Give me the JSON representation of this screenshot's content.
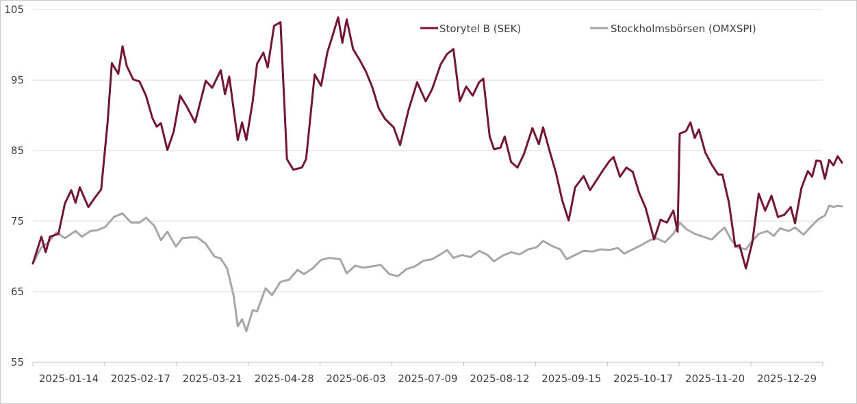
{
  "chart_data": {
    "type": "line",
    "title": "",
    "xlabel": "",
    "ylabel": "",
    "ylim": [
      55,
      105
    ],
    "yticks": [
      55,
      65,
      75,
      85,
      95,
      105
    ],
    "ytick_labels": [
      "55",
      "65",
      "75",
      "85",
      "95",
      "105"
    ],
    "x_start": "2025-01-02",
    "x_end": "2026-01-07",
    "xtick_labels": [
      "2025-01-14",
      "2025-02-17",
      "2025-03-21",
      "2025-04-28",
      "2025-06-03",
      "2025-07-09",
      "2025-08-12",
      "2025-09-15",
      "2025-10-17",
      "2025-11-20",
      "2025-12-29"
    ],
    "grid": "horizontal",
    "legend": "top-right",
    "series": [
      {
        "name": "Storytel B (SEK)",
        "color": "#7a1230",
        "points": [
          [
            "2025-01-02",
            69.0
          ],
          [
            "2025-01-06",
            72.8
          ],
          [
            "2025-01-08",
            70.6
          ],
          [
            "2025-01-10",
            72.8
          ],
          [
            "2025-01-14",
            73.2
          ],
          [
            "2025-01-17",
            77.5
          ],
          [
            "2025-01-20",
            79.4
          ],
          [
            "2025-01-22",
            77.6
          ],
          [
            "2025-01-24",
            79.8
          ],
          [
            "2025-01-28",
            77.0
          ],
          [
            "2025-01-31",
            78.3
          ],
          [
            "2025-02-03",
            79.5
          ],
          [
            "2025-02-06",
            89.0
          ],
          [
            "2025-02-08",
            97.4
          ],
          [
            "2025-02-11",
            95.9
          ],
          [
            "2025-02-13",
            99.8
          ],
          [
            "2025-02-15",
            97.0
          ],
          [
            "2025-02-18",
            95.1
          ],
          [
            "2025-02-21",
            94.8
          ],
          [
            "2025-02-24",
            92.8
          ],
          [
            "2025-02-27",
            89.6
          ],
          [
            "2025-03-01",
            88.4
          ],
          [
            "2025-03-03",
            88.9
          ],
          [
            "2025-03-06",
            85.1
          ],
          [
            "2025-03-09",
            87.7
          ],
          [
            "2025-03-12",
            92.8
          ],
          [
            "2025-03-15",
            91.3
          ],
          [
            "2025-03-19",
            89.0
          ],
          [
            "2025-03-24",
            94.9
          ],
          [
            "2025-03-27",
            93.9
          ],
          [
            "2025-03-31",
            96.4
          ],
          [
            "2025-04-02",
            93.0
          ],
          [
            "2025-04-04",
            95.5
          ],
          [
            "2025-04-08",
            86.5
          ],
          [
            "2025-04-10",
            89.0
          ],
          [
            "2025-04-12",
            86.5
          ],
          [
            "2025-04-15",
            92.0
          ],
          [
            "2025-04-17",
            97.3
          ],
          [
            "2025-04-20",
            98.9
          ],
          [
            "2025-04-22",
            96.8
          ],
          [
            "2025-04-25",
            102.7
          ],
          [
            "2025-04-28",
            103.2
          ],
          [
            "2025-05-01",
            83.8
          ],
          [
            "2025-05-04",
            82.3
          ],
          [
            "2025-05-08",
            82.6
          ],
          [
            "2025-05-10",
            83.8
          ],
          [
            "2025-05-14",
            95.8
          ],
          [
            "2025-05-17",
            94.2
          ],
          [
            "2025-05-20",
            99.0
          ],
          [
            "2025-05-22",
            100.9
          ],
          [
            "2025-05-25",
            103.9
          ],
          [
            "2025-05-27",
            100.3
          ],
          [
            "2025-05-29",
            103.6
          ],
          [
            "2025-06-01",
            99.4
          ],
          [
            "2025-06-04",
            97.9
          ],
          [
            "2025-06-07",
            96.2
          ],
          [
            "2025-06-10",
            94.0
          ],
          [
            "2025-06-13",
            91.0
          ],
          [
            "2025-06-16",
            89.5
          ],
          [
            "2025-06-20",
            88.3
          ],
          [
            "2025-06-23",
            85.8
          ],
          [
            "2025-06-27",
            90.8
          ],
          [
            "2025-07-01",
            94.7
          ],
          [
            "2025-07-05",
            92.0
          ],
          [
            "2025-07-08",
            93.7
          ],
          [
            "2025-07-12",
            97.2
          ],
          [
            "2025-07-15",
            98.7
          ],
          [
            "2025-07-18",
            99.4
          ],
          [
            "2025-07-21",
            92.0
          ],
          [
            "2025-07-24",
            94.1
          ],
          [
            "2025-07-27",
            92.8
          ],
          [
            "2025-07-30",
            94.7
          ],
          [
            "2025-08-01",
            95.2
          ],
          [
            "2025-08-04",
            87.0
          ],
          [
            "2025-08-06",
            85.2
          ],
          [
            "2025-08-09",
            85.4
          ],
          [
            "2025-08-11",
            87.0
          ],
          [
            "2025-08-14",
            83.4
          ],
          [
            "2025-08-17",
            82.6
          ],
          [
            "2025-08-20",
            84.5
          ],
          [
            "2025-08-24",
            88.2
          ],
          [
            "2025-08-27",
            85.9
          ],
          [
            "2025-08-29",
            88.3
          ],
          [
            "2025-09-01",
            85.0
          ],
          [
            "2025-09-04",
            81.9
          ],
          [
            "2025-09-07",
            77.9
          ],
          [
            "2025-09-10",
            75.1
          ],
          [
            "2025-09-13",
            79.8
          ],
          [
            "2025-09-17",
            81.4
          ],
          [
            "2025-09-20",
            79.4
          ],
          [
            "2025-09-23",
            80.8
          ],
          [
            "2025-09-26",
            82.2
          ],
          [
            "2025-09-29",
            83.5
          ],
          [
            "2025-10-01",
            84.1
          ],
          [
            "2025-10-04",
            81.3
          ],
          [
            "2025-10-07",
            82.6
          ],
          [
            "2025-10-10",
            82.0
          ],
          [
            "2025-10-13",
            79.0
          ],
          [
            "2025-10-16",
            76.9
          ],
          [
            "2025-10-20",
            72.4
          ],
          [
            "2025-10-23",
            75.2
          ],
          [
            "2025-10-26",
            74.8
          ],
          [
            "2025-10-29",
            76.5
          ],
          [
            "2025-10-31",
            73.5
          ],
          [
            "2025-11-01",
            87.4
          ],
          [
            "2025-11-04",
            87.8
          ],
          [
            "2025-11-06",
            89.0
          ],
          [
            "2025-11-08",
            86.8
          ],
          [
            "2025-11-10",
            88.0
          ],
          [
            "2025-11-13",
            84.7
          ],
          [
            "2025-11-16",
            83.0
          ],
          [
            "2025-11-19",
            81.6
          ],
          [
            "2025-11-21",
            81.6
          ],
          [
            "2025-11-24",
            77.7
          ],
          [
            "2025-11-27",
            71.4
          ],
          [
            "2025-11-29",
            71.6
          ],
          [
            "2025-12-02",
            68.3
          ],
          [
            "2025-12-05",
            72.0
          ],
          [
            "2025-12-08",
            78.9
          ],
          [
            "2025-12-11",
            76.5
          ],
          [
            "2025-12-14",
            78.6
          ],
          [
            "2025-12-17",
            75.6
          ],
          [
            "2025-12-20",
            75.9
          ],
          [
            "2025-12-23",
            77.0
          ],
          [
            "2025-12-25",
            74.7
          ],
          [
            "2025-12-28",
            79.7
          ],
          [
            "2025-12-31",
            82.1
          ],
          [
            "2026-01-02",
            81.3
          ],
          [
            "2026-01-04",
            83.6
          ],
          [
            "2026-01-06",
            83.5
          ],
          [
            "2026-01-08",
            81.0
          ],
          [
            "2026-01-10",
            83.7
          ],
          [
            "2026-01-12",
            82.9
          ],
          [
            "2026-01-14",
            84.2
          ],
          [
            "2026-01-16",
            83.3
          ]
        ]
      },
      {
        "name": "Stockholmsbörsen (OMXSPI)",
        "color": "#a6a6a6",
        "points": [
          [
            "2025-01-02",
            69.0
          ],
          [
            "2025-01-06",
            71.3
          ],
          [
            "2025-01-09",
            71.9
          ],
          [
            "2025-01-13",
            73.4
          ],
          [
            "2025-01-17",
            72.6
          ],
          [
            "2025-01-22",
            73.6
          ],
          [
            "2025-01-25",
            72.8
          ],
          [
            "2025-01-29",
            73.6
          ],
          [
            "2025-02-01",
            73.7
          ],
          [
            "2025-02-05",
            74.2
          ],
          [
            "2025-02-09",
            75.6
          ],
          [
            "2025-02-13",
            76.1
          ],
          [
            "2025-02-17",
            74.8
          ],
          [
            "2025-02-21",
            74.8
          ],
          [
            "2025-02-24",
            75.5
          ],
          [
            "2025-02-28",
            74.3
          ],
          [
            "2025-03-03",
            72.3
          ],
          [
            "2025-03-06",
            73.5
          ],
          [
            "2025-03-10",
            71.4
          ],
          [
            "2025-03-13",
            72.6
          ],
          [
            "2025-03-17",
            72.7
          ],
          [
            "2025-03-20",
            72.7
          ],
          [
            "2025-03-24",
            71.8
          ],
          [
            "2025-03-28",
            70.0
          ],
          [
            "2025-03-31",
            69.7
          ],
          [
            "2025-04-03",
            68.3
          ],
          [
            "2025-04-06",
            64.5
          ],
          [
            "2025-04-08",
            60.1
          ],
          [
            "2025-04-10",
            61.1
          ],
          [
            "2025-04-12",
            59.4
          ],
          [
            "2025-04-15",
            62.4
          ],
          [
            "2025-04-17",
            62.2
          ],
          [
            "2025-04-21",
            65.5
          ],
          [
            "2025-04-24",
            64.5
          ],
          [
            "2025-04-28",
            66.4
          ],
          [
            "2025-05-02",
            66.7
          ],
          [
            "2025-05-06",
            68.1
          ],
          [
            "2025-05-09",
            67.5
          ],
          [
            "2025-05-13",
            68.3
          ],
          [
            "2025-05-17",
            69.5
          ],
          [
            "2025-05-21",
            69.8
          ],
          [
            "2025-05-26",
            69.6
          ],
          [
            "2025-05-29",
            67.6
          ],
          [
            "2025-06-02",
            68.7
          ],
          [
            "2025-06-06",
            68.4
          ],
          [
            "2025-06-10",
            68.6
          ],
          [
            "2025-06-14",
            68.8
          ],
          [
            "2025-06-18",
            67.5
          ],
          [
            "2025-06-22",
            67.2
          ],
          [
            "2025-06-26",
            68.2
          ],
          [
            "2025-06-30",
            68.6
          ],
          [
            "2025-07-04",
            69.4
          ],
          [
            "2025-07-08",
            69.6
          ],
          [
            "2025-07-12",
            70.3
          ],
          [
            "2025-07-15",
            70.9
          ],
          [
            "2025-07-18",
            69.8
          ],
          [
            "2025-07-22",
            70.2
          ],
          [
            "2025-07-26",
            69.9
          ],
          [
            "2025-07-30",
            70.8
          ],
          [
            "2025-08-03",
            70.2
          ],
          [
            "2025-08-06",
            69.3
          ],
          [
            "2025-08-10",
            70.1
          ],
          [
            "2025-08-14",
            70.6
          ],
          [
            "2025-08-18",
            70.3
          ],
          [
            "2025-08-22",
            71.0
          ],
          [
            "2025-08-26",
            71.3
          ],
          [
            "2025-08-29",
            72.2
          ],
          [
            "2025-09-02",
            71.5
          ],
          [
            "2025-09-06",
            71.0
          ],
          [
            "2025-09-09",
            69.6
          ],
          [
            "2025-09-13",
            70.2
          ],
          [
            "2025-09-17",
            70.8
          ],
          [
            "2025-09-21",
            70.7
          ],
          [
            "2025-09-25",
            71.0
          ],
          [
            "2025-09-29",
            70.9
          ],
          [
            "2025-10-03",
            71.2
          ],
          [
            "2025-10-06",
            70.4
          ],
          [
            "2025-10-10",
            71.0
          ],
          [
            "2025-10-14",
            71.6
          ],
          [
            "2025-10-18",
            72.3
          ],
          [
            "2025-10-21",
            72.6
          ],
          [
            "2025-10-25",
            72.0
          ],
          [
            "2025-10-29",
            73.2
          ],
          [
            "2025-11-01",
            74.8
          ],
          [
            "2025-11-04",
            73.9
          ],
          [
            "2025-11-08",
            73.2
          ],
          [
            "2025-11-12",
            72.8
          ],
          [
            "2025-11-16",
            72.4
          ],
          [
            "2025-11-19",
            73.3
          ],
          [
            "2025-11-22",
            74.1
          ],
          [
            "2025-11-25",
            72.4
          ],
          [
            "2025-11-28",
            71.3
          ],
          [
            "2025-12-02",
            71.0
          ],
          [
            "2025-12-05",
            72.2
          ],
          [
            "2025-12-08",
            73.2
          ],
          [
            "2025-12-12",
            73.6
          ],
          [
            "2025-12-15",
            72.9
          ],
          [
            "2025-12-18",
            74.0
          ],
          [
            "2025-12-22",
            73.6
          ],
          [
            "2025-12-25",
            74.1
          ],
          [
            "2025-12-29",
            73.1
          ],
          [
            "2026-01-02",
            74.4
          ],
          [
            "2026-01-05",
            75.3
          ],
          [
            "2026-01-08",
            75.8
          ],
          [
            "2026-01-10",
            77.2
          ],
          [
            "2026-01-12",
            77.0
          ],
          [
            "2026-01-14",
            77.2
          ],
          [
            "2026-01-16",
            77.1
          ]
        ]
      }
    ]
  }
}
